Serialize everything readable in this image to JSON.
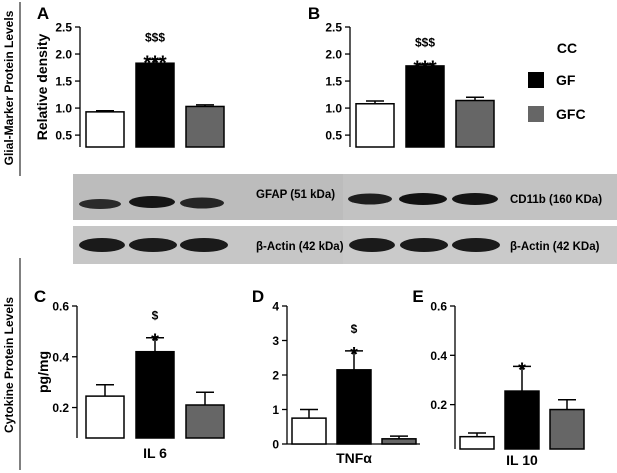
{
  "section_labels": {
    "top": "Glial-Marker Protein Levels",
    "bottom": "Cytokine Protein Levels"
  },
  "legend": {
    "title": "CC",
    "items": [
      {
        "label": "CC",
        "color": "#ffffff"
      },
      {
        "label": "GF",
        "color": "#000000"
      },
      {
        "label": "GFC",
        "color": "#666666"
      }
    ]
  },
  "blots": {
    "A": {
      "target_label": "GFAP (51 kDa)",
      "control_label": "β-Actin (42 kDa)"
    },
    "B": {
      "target_label": "CD11b (160 KDa)",
      "control_label": "β-Actin (42 KDa)"
    }
  },
  "chart_data": [
    {
      "panel": "A",
      "type": "bar",
      "categories": [
        "CC",
        "GF",
        "GFC"
      ],
      "values": [
        0.93,
        1.83,
        1.03
      ],
      "errors": [
        0.02,
        0.07,
        0.03
      ],
      "colors": [
        "#ffffff",
        "#000000",
        "#666666"
      ],
      "ylabel": "Relative density",
      "xlabel": "",
      "ylim": [
        0.28,
        2.5
      ],
      "yticks": [
        0.5,
        1.0,
        1.5,
        2.0,
        2.5
      ],
      "ytick_labels": [
        "0.5",
        "1.0",
        "1.5",
        "2.0",
        "2.5"
      ],
      "annotations": [
        {
          "category": "GF",
          "lines": [
            "$$$",
            "***"
          ]
        }
      ]
    },
    {
      "panel": "B",
      "type": "bar",
      "categories": [
        "CC",
        "GF",
        "GFC"
      ],
      "values": [
        1.08,
        1.78,
        1.14
      ],
      "errors": [
        0.05,
        0.03,
        0.06
      ],
      "colors": [
        "#ffffff",
        "#000000",
        "#666666"
      ],
      "ylabel": "",
      "xlabel": "",
      "ylim": [
        0.28,
        2.5
      ],
      "yticks": [
        0.5,
        1.0,
        1.5,
        2.0,
        2.5
      ],
      "ytick_labels": [
        "0.5",
        "1.0",
        "1.5",
        "2.0",
        "2.5"
      ],
      "annotations": [
        {
          "category": "GF",
          "lines": [
            "$$$",
            "***"
          ]
        }
      ]
    },
    {
      "panel": "C",
      "type": "bar",
      "categories": [
        "CC",
        "GF",
        "GFC"
      ],
      "values": [
        0.245,
        0.42,
        0.21
      ],
      "errors": [
        0.045,
        0.055,
        0.05
      ],
      "colors": [
        "#ffffff",
        "#000000",
        "#666666"
      ],
      "ylabel": "pg/mg",
      "xlabel": "IL 6",
      "ylim": [
        0.08,
        0.6
      ],
      "yticks": [
        0.2,
        0.4,
        0.6
      ],
      "ytick_labels": [
        "0.2",
        "0.4",
        "0.6"
      ],
      "annotations": [
        {
          "category": "GF",
          "lines": [
            "$",
            "*"
          ]
        }
      ]
    },
    {
      "panel": "D",
      "type": "bar",
      "categories": [
        "CC",
        "GF",
        "GFC"
      ],
      "values": [
        0.75,
        2.15,
        0.15
      ],
      "errors": [
        0.25,
        0.55,
        0.08
      ],
      "colors": [
        "#ffffff",
        "#000000",
        "#666666"
      ],
      "ylabel": "",
      "xlabel": "TNFα",
      "ylim": [
        0,
        4
      ],
      "yticks": [
        0,
        1,
        2,
        3,
        4
      ],
      "ytick_labels": [
        "0",
        "1",
        "2",
        "3",
        "4"
      ],
      "annotations": [
        {
          "category": "GF",
          "lines": [
            "$",
            "*"
          ]
        }
      ]
    },
    {
      "panel": "E",
      "type": "bar",
      "categories": [
        "CC",
        "GF",
        "GFC"
      ],
      "values": [
        0.07,
        0.255,
        0.18
      ],
      "errors": [
        0.015,
        0.1,
        0.04
      ],
      "colors": [
        "#ffffff",
        "#000000",
        "#666666"
      ],
      "ylabel": "",
      "xlabel": "IL 10",
      "ylim": [
        0.02,
        0.6
      ],
      "yticks": [
        0.2,
        0.4,
        0.6
      ],
      "ytick_labels": [
        "0.2",
        "0.4",
        "0.6"
      ],
      "annotations": [
        {
          "category": "GF",
          "lines": [
            "*"
          ]
        }
      ]
    }
  ]
}
